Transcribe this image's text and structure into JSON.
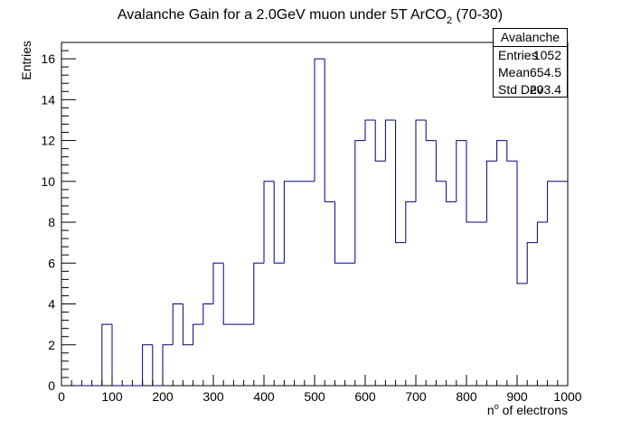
{
  "chart_data": {
    "type": "histogram",
    "title_main": "Avalanche Gain for a 2.0GeV muon under 5T ArCO",
    "title_sub": "2",
    "title_tail": " (70-30)",
    "xlabel": "n",
    "xlabel_sup": "o",
    "xlabel_tail": " of electrons",
    "ylabel": "Entries",
    "xlim": [
      0,
      1000
    ],
    "ylim": [
      0,
      16.8
    ],
    "xticks": [
      "0",
      "100",
      "200",
      "300",
      "400",
      "500",
      "600",
      "700",
      "800",
      "900",
      "1000"
    ],
    "yticks": [
      "0",
      "2",
      "4",
      "6",
      "8",
      "10",
      "12",
      "14",
      "16"
    ],
    "bin_width": 20,
    "bin_low_edges": [
      0,
      20,
      40,
      60,
      80,
      100,
      120,
      140,
      160,
      180,
      200,
      220,
      240,
      260,
      280,
      300,
      320,
      340,
      360,
      380,
      400,
      420,
      440,
      460,
      480,
      500,
      520,
      540,
      560,
      580,
      600,
      620,
      640,
      660,
      680,
      700,
      720,
      740,
      760,
      780,
      800,
      820,
      840,
      860,
      880,
      900,
      920,
      940,
      960,
      980
    ],
    "values": [
      0,
      0,
      0,
      0,
      3,
      0,
      0,
      0,
      2,
      0,
      2,
      4,
      2,
      3,
      4,
      6,
      3,
      3,
      3,
      6,
      10,
      6,
      10,
      10,
      10,
      16,
      9,
      6,
      6,
      12,
      13,
      11,
      13,
      7,
      9,
      13,
      12,
      10,
      9,
      12,
      8,
      8,
      11,
      12,
      11,
      5,
      7,
      8,
      10,
      10
    ],
    "line_color": "#000080",
    "grid": false,
    "stats": {
      "title": "Avalanche",
      "rows": [
        {
          "key": "Entries",
          "value": "1052"
        },
        {
          "key": "Mean",
          "value": "654.5"
        },
        {
          "key": "Std Dev",
          "value": "203.4"
        }
      ]
    }
  }
}
